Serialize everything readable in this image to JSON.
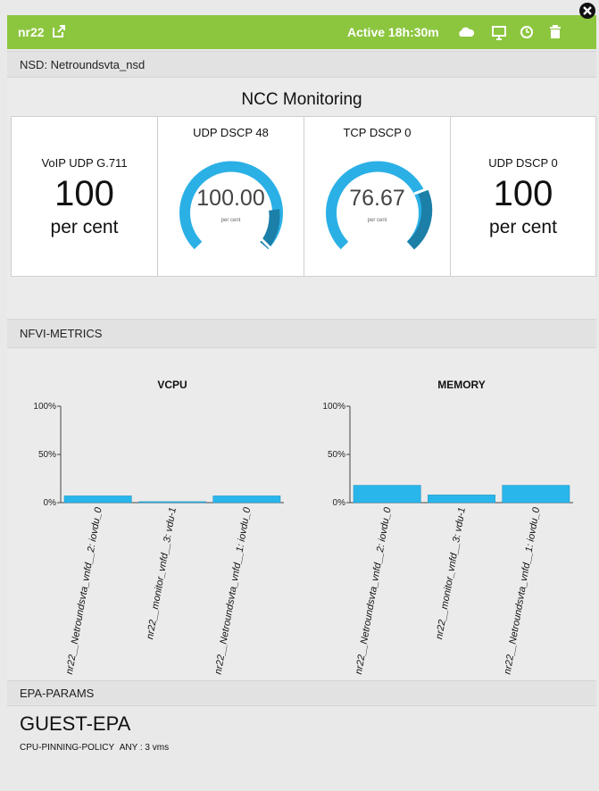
{
  "header": {
    "title": "nr22",
    "status": "Active 18h:30m"
  },
  "nsd": "NSD: Netroundsvta_nsd",
  "ncc": {
    "title": "NCC Monitoring",
    "tiles": [
      {
        "label": "VoIP UDP G.711",
        "value": "100",
        "unit": "per cent"
      },
      {
        "label": "UDP DSCP 48",
        "value": "100.00",
        "unit": "per cent"
      },
      {
        "label": "TCP DSCP 0",
        "value": "76.67",
        "unit": "per cent"
      },
      {
        "label": "UDP DSCP 0",
        "value": "100",
        "unit": "per cent"
      }
    ]
  },
  "nfvi": {
    "title": "NFVI-METRICS",
    "charts": [
      {
        "type": "bar",
        "title": "VCPU",
        "color": "#29b6ea",
        "categories": [
          "nr22__Netroundsvta_vnfd__2: iovdu_0",
          "nr22__monitor_vnfd__3: vdu-1",
          "nr22__Netroundsvta_vnfd__1: iovdu_0"
        ],
        "values": [
          7,
          1,
          7
        ],
        "ylim": [
          0,
          100
        ],
        "yticks": [
          {
            "value": 0,
            "label": "0%"
          },
          {
            "value": 50,
            "label": "50%"
          },
          {
            "value": 100,
            "label": "100%"
          }
        ]
      },
      {
        "type": "bar",
        "title": "MEMORY",
        "color": "#29b6ea",
        "categories": [
          "nr22__Netroundsvta_vnfd__2: iovdu_0",
          "nr22__monitor_vnfd__3: vdu-1",
          "nr22__Netroundsvta_vnfd__1: iovdu_0"
        ],
        "values": [
          18,
          8,
          18
        ],
        "ylim": [
          0,
          100
        ],
        "yticks": [
          {
            "value": 0,
            "label": "0%"
          },
          {
            "value": 50,
            "label": "50%"
          },
          {
            "value": 100,
            "label": "100%"
          }
        ]
      }
    ]
  },
  "epa": {
    "title": "EPA-PARAMS",
    "name": "GUEST-EPA",
    "params": [
      {
        "key": "CPU-PINNING-POLICY",
        "value": "ANY : 3 vms"
      }
    ]
  }
}
